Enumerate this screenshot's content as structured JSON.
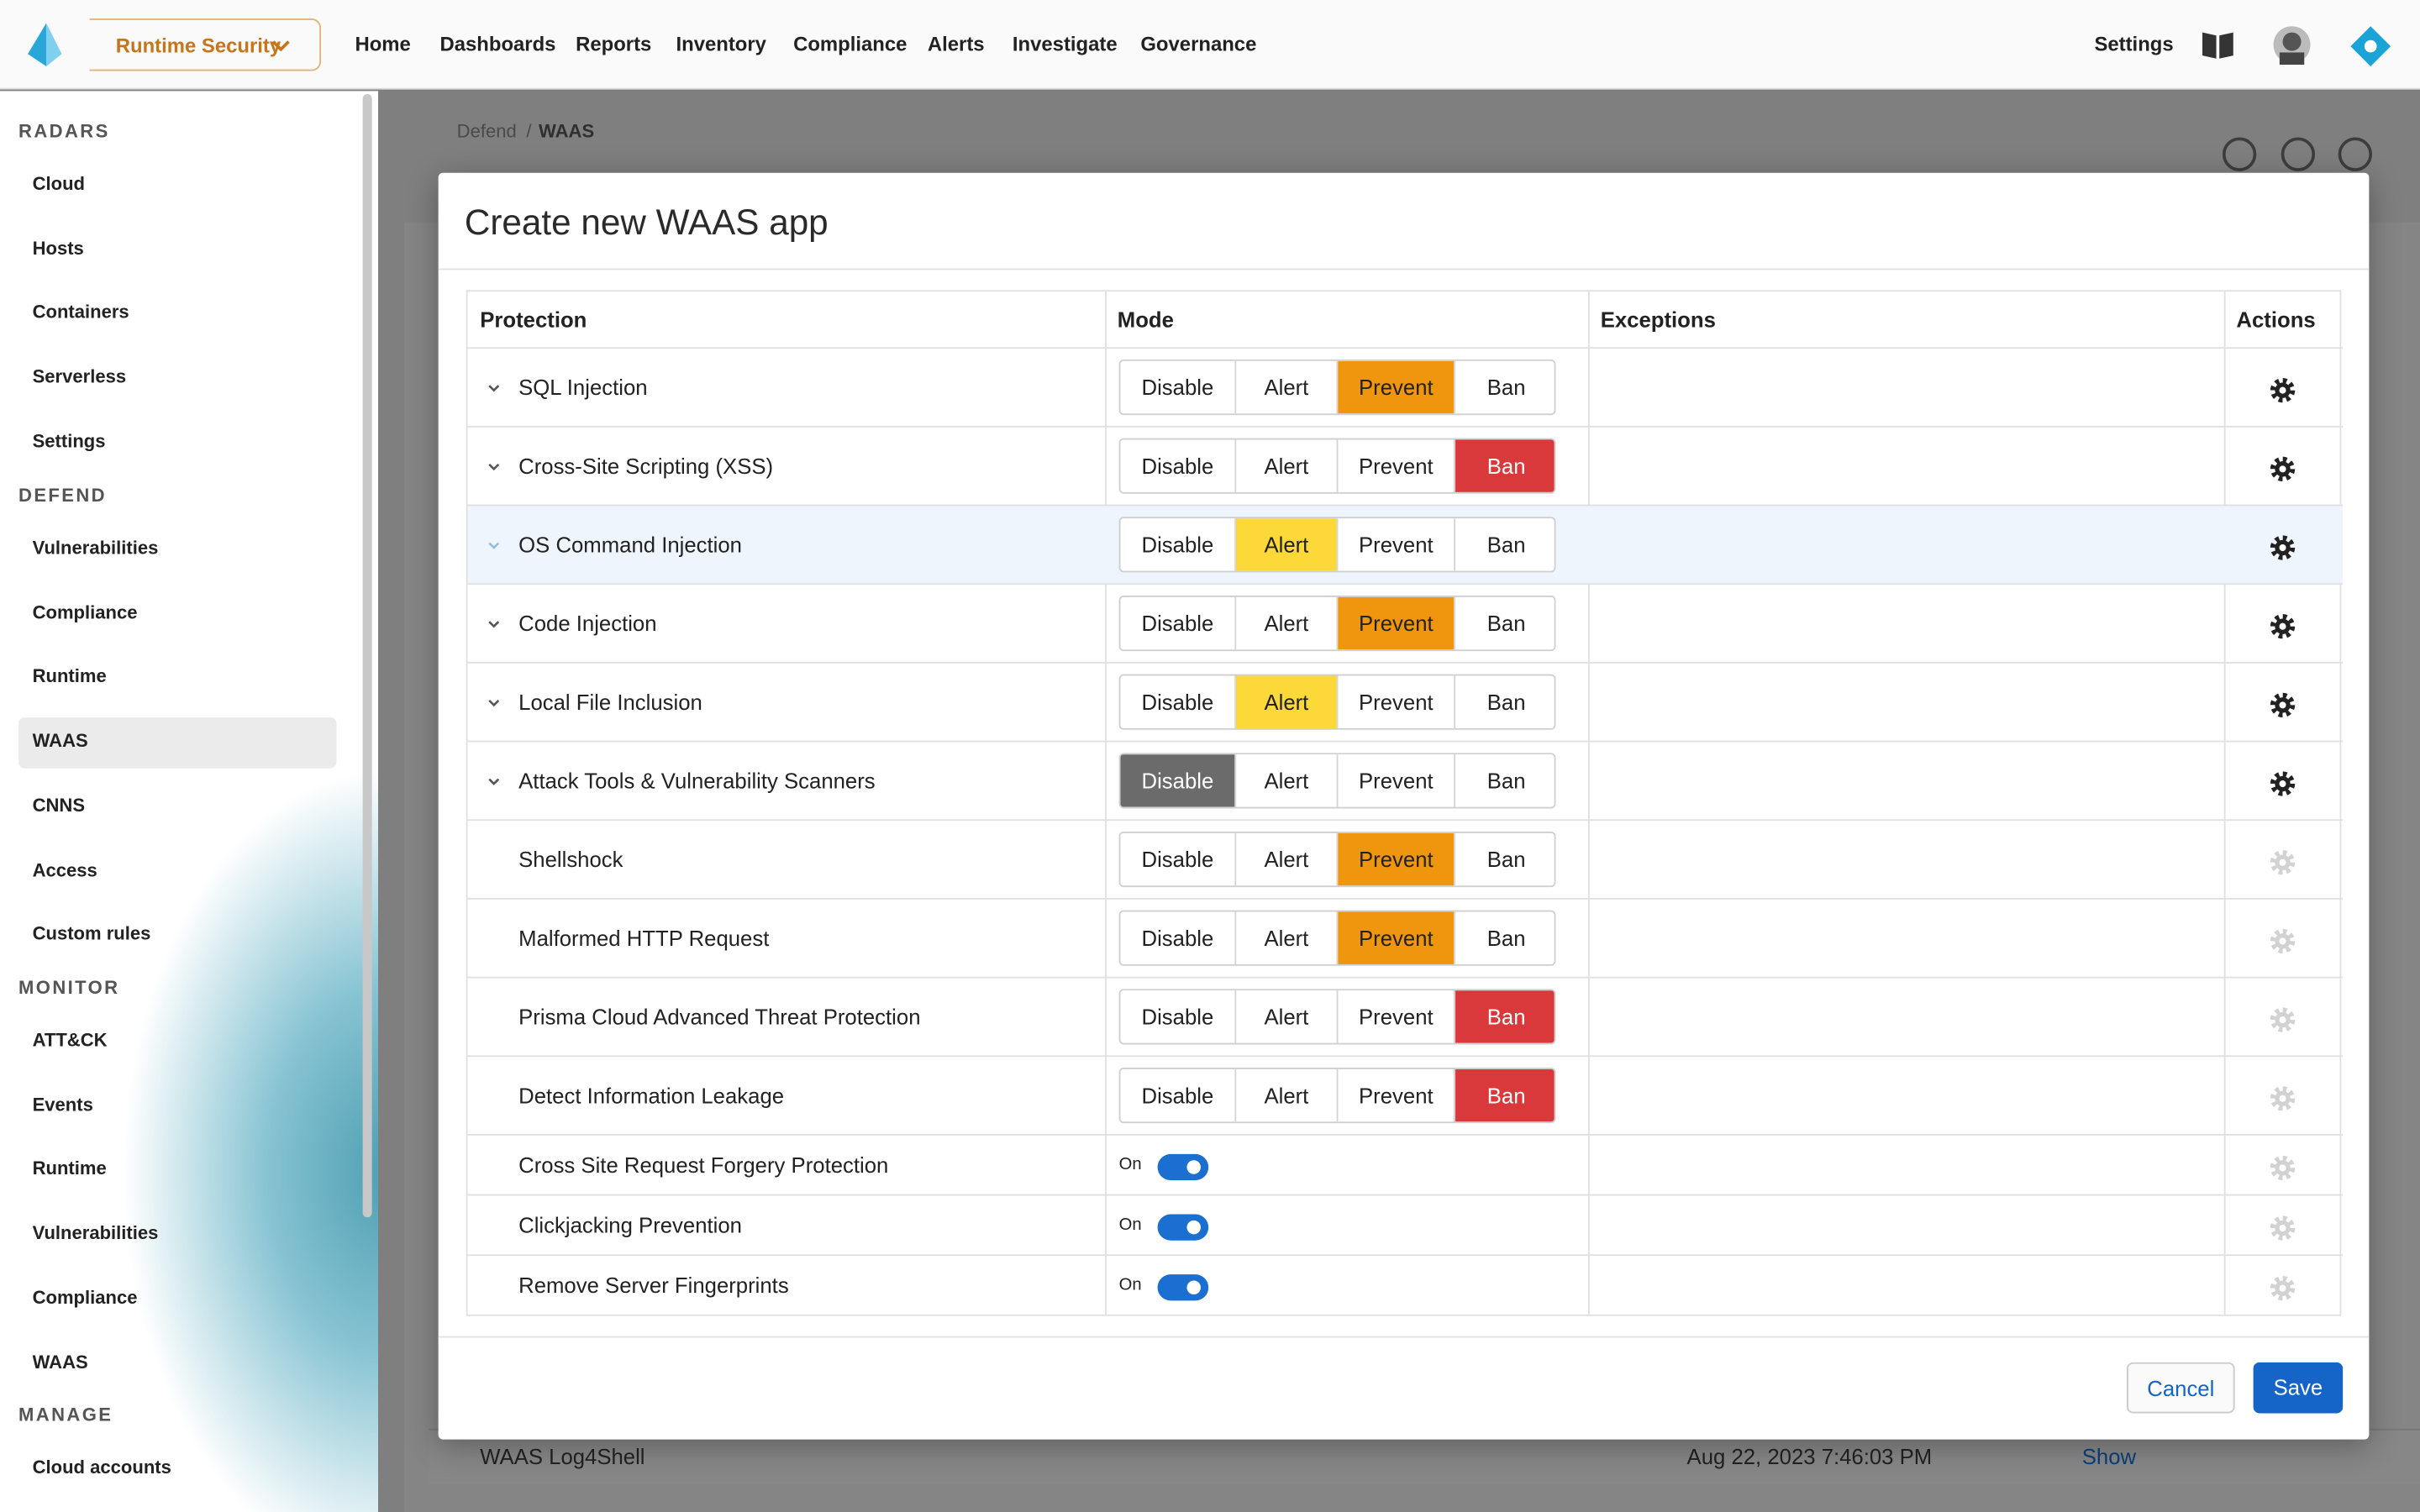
{
  "topbar": {
    "product": "Runtime Security",
    "nav": [
      "Home",
      "Dashboards",
      "Reports",
      "Inventory",
      "Compliance",
      "Alerts",
      "Investigate",
      "Governance"
    ],
    "settings": "Settings"
  },
  "sidebar": [
    {
      "heading": "RADARS",
      "items": [
        "Cloud",
        "Hosts",
        "Containers",
        "Serverless",
        "Settings"
      ]
    },
    {
      "heading": "DEFEND",
      "items": [
        "Vulnerabilities",
        "Compliance",
        "Runtime",
        "WAAS",
        "CNNS",
        "Access",
        "Custom rules"
      ],
      "active": "WAAS"
    },
    {
      "heading": "MONITOR",
      "items": [
        "ATT&CK",
        "Events",
        "Runtime",
        "Vulnerabilities",
        "Compliance",
        "WAAS"
      ]
    },
    {
      "heading": "MANAGE",
      "items": [
        "Cloud accounts"
      ]
    }
  ],
  "breadcrumb": {
    "parent": "Defend",
    "separator": "/",
    "current": "WAAS"
  },
  "background_row": {
    "name": "WAAS Log4Shell",
    "date": "Aug 22, 2023 7:46:03 PM",
    "link": "Show"
  },
  "modal": {
    "title": "Create new WAAS app",
    "columns": [
      "Protection",
      "Mode",
      "Exceptions",
      "Actions"
    ],
    "modes": [
      "Disable",
      "Alert",
      "Prevent",
      "Ban"
    ],
    "rows": [
      {
        "name": "SQL Injection",
        "expandable": true,
        "mode": "Prevent"
      },
      {
        "name": "Cross-Site Scripting (XSS)",
        "expandable": true,
        "mode": "Ban"
      },
      {
        "name": "OS Command Injection",
        "expandable": true,
        "mode": "Alert",
        "highlighted": true
      },
      {
        "name": "Code Injection",
        "expandable": true,
        "mode": "Prevent"
      },
      {
        "name": "Local File Inclusion",
        "expandable": true,
        "mode": "Alert"
      },
      {
        "name": "Attack Tools & Vulnerability Scanners",
        "expandable": true,
        "mode": "Disable"
      },
      {
        "name": "Shellshock",
        "expandable": false,
        "mode": "Prevent"
      },
      {
        "name": "Malformed HTTP Request",
        "expandable": false,
        "mode": "Prevent"
      },
      {
        "name": "Prisma Cloud Advanced Threat Protection",
        "expandable": false,
        "mode": "Ban"
      },
      {
        "name": "Detect Information Leakage",
        "expandable": false,
        "mode": "Ban"
      },
      {
        "name": "Cross Site Request Forgery Protection",
        "expandable": false,
        "toggle": "On"
      },
      {
        "name": "Clickjacking Prevention",
        "expandable": false,
        "toggle": "On"
      },
      {
        "name": "Remove Server Fingerprints",
        "expandable": false,
        "toggle": "On"
      }
    ],
    "buttons": {
      "cancel": "Cancel",
      "save": "Save"
    }
  }
}
